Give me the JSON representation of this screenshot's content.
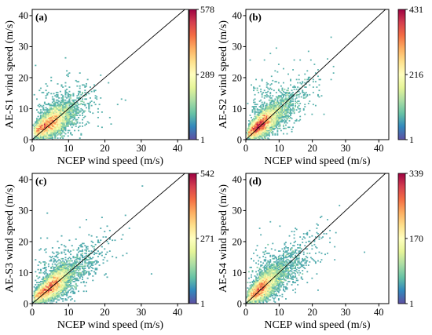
{
  "chart_data": [
    {
      "type": "heatmap",
      "panel_label": "(a)",
      "xlabel": "NCEP wind speed (m/s)",
      "ylabel": "AE-S1 wind speed (m/s)",
      "xlim": [
        0,
        43
      ],
      "ylim": [
        0,
        42
      ],
      "xticks": [
        0,
        10,
        20,
        30,
        40
      ],
      "yticks": [
        0,
        10,
        20,
        30,
        40
      ],
      "colorbar_ticks": [
        578,
        289,
        1
      ],
      "colorbar_max": 578,
      "colormap": "Spectral_r",
      "reference_line": "y = x",
      "density_peak": [
        6,
        6
      ]
    },
    {
      "type": "heatmap",
      "panel_label": "(b)",
      "xlabel": "NCEP wind speed (m/s)",
      "ylabel": "AE-S2 wind speed (m/s)",
      "xlim": [
        0,
        43
      ],
      "ylim": [
        0,
        42
      ],
      "xticks": [
        0,
        10,
        20,
        30,
        40
      ],
      "yticks": [
        0,
        10,
        20,
        30,
        40
      ],
      "colorbar_ticks": [
        431,
        216,
        1
      ],
      "colorbar_max": 431,
      "colormap": "Spectral_r",
      "reference_line": "y = x",
      "density_peak": [
        5,
        5
      ]
    },
    {
      "type": "heatmap",
      "panel_label": "(c)",
      "xlabel": "NCEP wind speed (m/s)",
      "ylabel": "AE-S3 wind speed (m/s)",
      "xlim": [
        0,
        43
      ],
      "ylim": [
        0,
        42
      ],
      "xticks": [
        0,
        10,
        20,
        30,
        40
      ],
      "yticks": [
        0,
        10,
        20,
        30,
        40
      ],
      "colorbar_ticks": [
        542,
        271,
        1
      ],
      "colorbar_max": 542,
      "colormap": "Spectral_r",
      "reference_line": "y = x",
      "density_peak": [
        6,
        6
      ]
    },
    {
      "type": "heatmap",
      "panel_label": "(d)",
      "xlabel": "NCEP wind speed (m/s)",
      "ylabel": "AE-S4 wind speed (m/s)",
      "xlim": [
        0,
        43
      ],
      "ylim": [
        0,
        42
      ],
      "xticks": [
        0,
        10,
        20,
        30,
        40
      ],
      "yticks": [
        0,
        10,
        20,
        30,
        40
      ],
      "colorbar_ticks": [
        339,
        170,
        1
      ],
      "colorbar_max": 339,
      "colormap": "Spectral_r",
      "reference_line": "y = x",
      "density_peak": [
        5,
        5
      ]
    }
  ],
  "colors": {
    "colormap_stops": [
      "#5e4fa2",
      "#3288bd",
      "#66c2a5",
      "#abdda4",
      "#e6f598",
      "#ffffbf",
      "#fee08b",
      "#fdae61",
      "#f46d43",
      "#d53e4f",
      "#9e0142"
    ],
    "reference_line": "#000000",
    "axes": "#000000"
  }
}
